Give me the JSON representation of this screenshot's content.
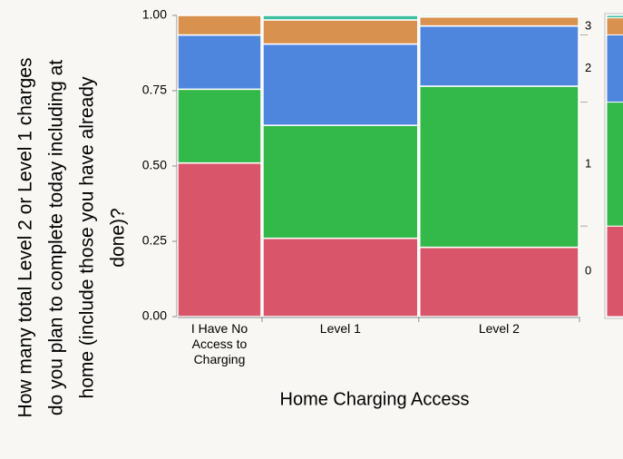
{
  "chart_data": {
    "type": "mosaic",
    "ylabel": [
      "How many total Level 2 or Level 1 charges",
      "do you plan to complete today including at",
      "home (include those you have already",
      "done)?"
    ],
    "xlabel": "Home Charging Access",
    "categories": [
      "I Have No Access to Charging",
      "Level 1",
      "Level 2"
    ],
    "category_shares": [
      0.21,
      0.39,
      0.4
    ],
    "series": [
      {
        "name": "0",
        "color": "#d9566a",
        "values": [
          0.51,
          0.26,
          0.23
        ]
      },
      {
        "name": "1",
        "color": "#33b84a",
        "values": [
          0.245,
          0.375,
          0.535
        ]
      },
      {
        "name": "2",
        "color": "#4f86dd",
        "values": [
          0.18,
          0.27,
          0.2
        ]
      },
      {
        "name": "3",
        "color": "#d9914f",
        "values": [
          0.065,
          0.08,
          0.03
        ]
      },
      {
        "name": null,
        "color": "#3fbf9f",
        "values": [
          0,
          0.015,
          0.005
        ]
      }
    ],
    "ylim": [
      0,
      1
    ],
    "yticks": [
      {
        "value": 0,
        "label": "0.00"
      },
      {
        "value": 0.25,
        "label": "0.25"
      },
      {
        "value": 0.5,
        "label": "0.50"
      },
      {
        "value": 0.75,
        "label": "0.75"
      },
      {
        "value": 1,
        "label": "1.00"
      }
    ]
  }
}
